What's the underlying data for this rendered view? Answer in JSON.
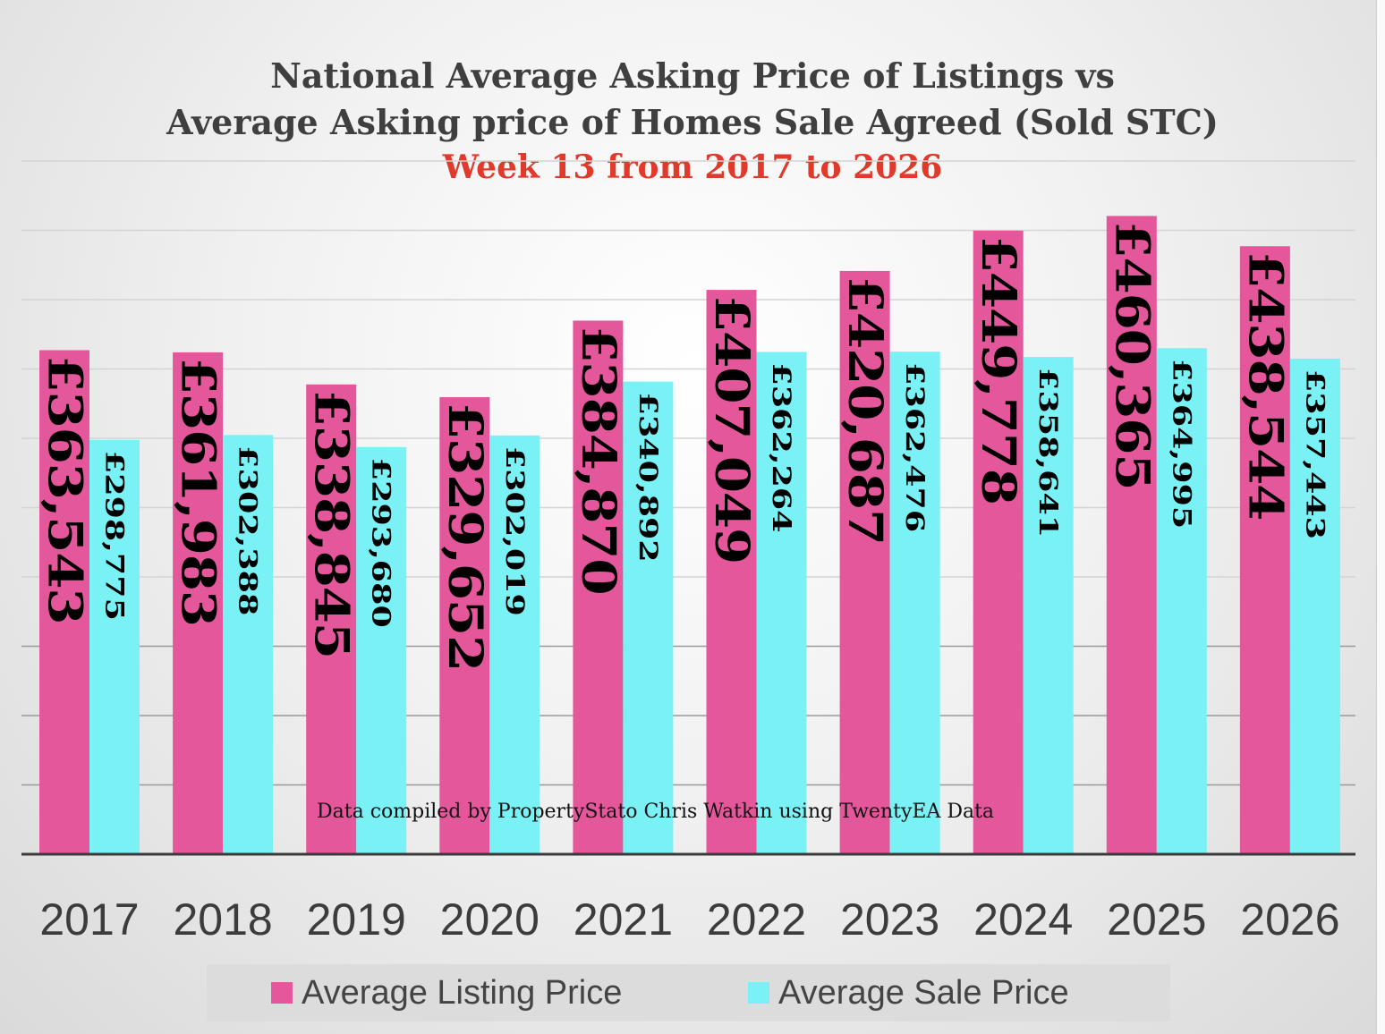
{
  "chart_data": {
    "type": "bar",
    "title": "National Average Asking Price of Listings vs",
    "title_line2": "Average Asking price of Homes Sale Agreed (Sold STC)",
    "subtitle": "Week 13 from 2017 to 2026",
    "categories": [
      "2017",
      "2018",
      "2019",
      "2020",
      "2021",
      "2022",
      "2023",
      "2024",
      "2025",
      "2026"
    ],
    "series": [
      {
        "name": "Average Listing Price",
        "color": "#e5579b",
        "values": [
          363543,
          361983,
          338845,
          329652,
          384870,
          407049,
          420687,
          449778,
          460365,
          438544
        ],
        "labels": [
          "£363,543",
          "£361,983",
          "£338,845",
          "£329,652",
          "£384,870",
          "£407,049",
          "£420,687",
          "£449,778",
          "£460,365",
          "£438,544"
        ]
      },
      {
        "name": "Average Sale Price",
        "color": "#7af1f5",
        "values": [
          298775,
          302388,
          293680,
          302019,
          340892,
          362264,
          362476,
          358641,
          364995,
          357443
        ],
        "labels": [
          "£298,775",
          "£302,388",
          "£293,680",
          "£302,019",
          "£340,892",
          "£362,264",
          "£362,476",
          "£358,641",
          "£364,995",
          "£357,443"
        ]
      }
    ],
    "xlabel": "",
    "ylabel": "",
    "ylim": [
      0,
      500000
    ],
    "grid": true,
    "legend": "bottom",
    "annotation": "Data compiled by PropertyStato Chris Watkin using TwentyEA Data"
  }
}
